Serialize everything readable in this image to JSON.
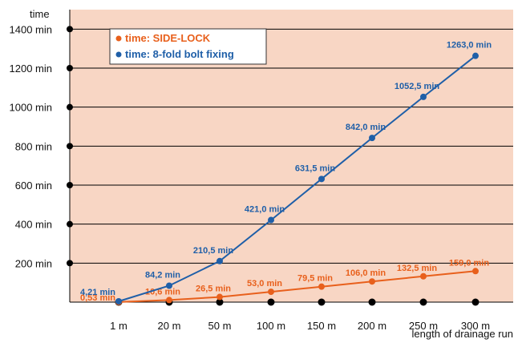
{
  "chart_data": {
    "type": "line",
    "ylabel": "time",
    "xlabel": "length of drainage run",
    "categories": [
      "1 m",
      "20 m",
      "50 m",
      "100 m",
      "150 m",
      "200 m",
      "250 m",
      "300 m"
    ],
    "y_ticks": [
      200,
      400,
      600,
      800,
      1000,
      1200,
      1400
    ],
    "y_tick_labels": [
      "200 min",
      "400 min",
      "600 min",
      "800 min",
      "1000 min",
      "1200 min",
      "1400 min"
    ],
    "ylim": [
      0,
      1500
    ],
    "grid": "horizontal",
    "legend_position": "top-left",
    "background_color": "#f8d6c4",
    "series": [
      {
        "name": "time: SIDE-LOCK",
        "color": "#e8601c",
        "values": [
          0.53,
          10.6,
          26.5,
          53.0,
          79.5,
          106.0,
          132.5,
          159.0
        ],
        "labels": [
          "0,53 min",
          "10,6 min",
          "26,5 min",
          "53,0 min",
          "79,5 min",
          "106,0 min",
          "132,5 min",
          "159,0 min"
        ]
      },
      {
        "name": "time: 8-fold bolt fixing",
        "color": "#1f5fa8",
        "values": [
          4.21,
          84.2,
          210.5,
          421.0,
          631.5,
          842.0,
          1052.5,
          1263.0
        ],
        "labels": [
          "4,21 min",
          "84,2 min",
          "210,5 min",
          "421,0 min",
          "631,5 min",
          "842,0 min",
          "1052,5 min",
          "1263,0 min"
        ]
      }
    ]
  }
}
